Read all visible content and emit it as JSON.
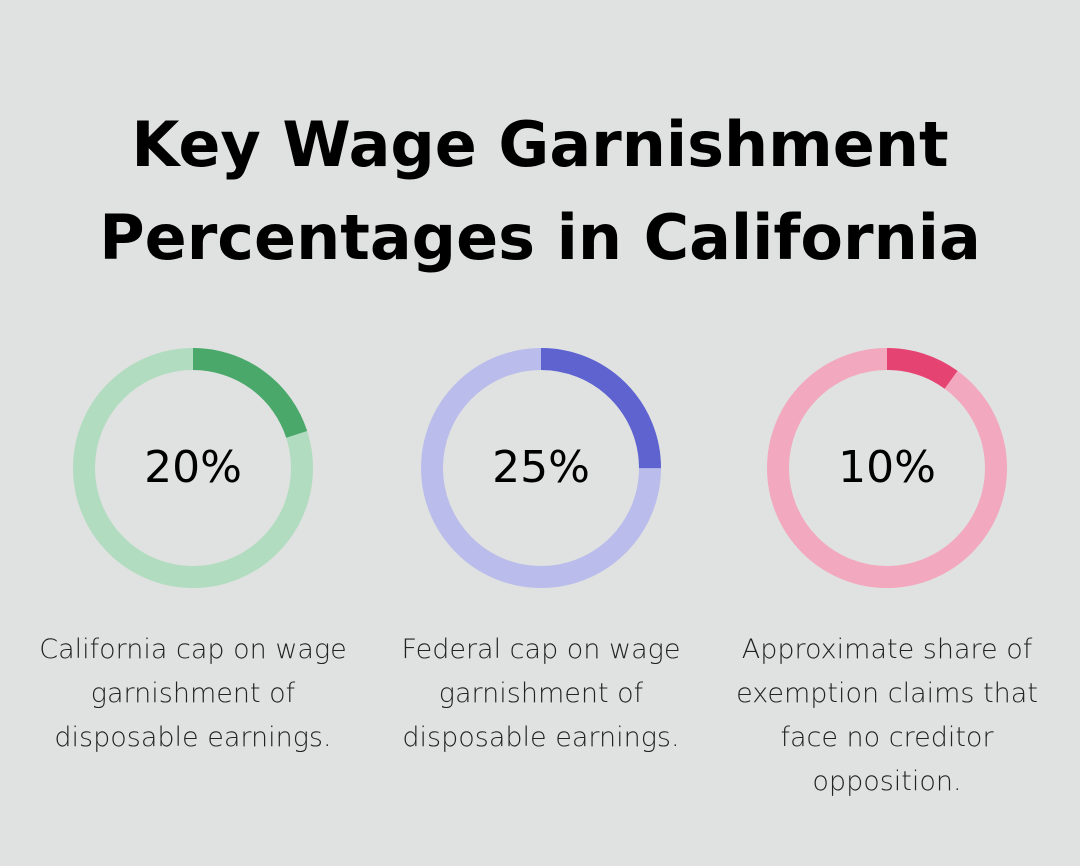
{
  "title": {
    "line1": "Key Wage Garnishment",
    "line2": "Percentages in California"
  },
  "chart_data": [
    {
      "type": "pie",
      "value": 20,
      "max": 100,
      "label": "20%",
      "caption": "California cap on wage garnishment of disposable earnings.",
      "colors": {
        "fill": "#4aa86b",
        "track": "#b2dcc0"
      }
    },
    {
      "type": "pie",
      "value": 25,
      "max": 100,
      "label": "25%",
      "caption": "Federal cap on wage garnishment of disposable earnings.",
      "colors": {
        "fill": "#5e63d0",
        "track": "#babdeb"
      }
    },
    {
      "type": "pie",
      "value": 10,
      "max": 100,
      "label": "10%",
      "caption": "Approximate share of exemption claims that face no creditor opposition.",
      "colors": {
        "fill": "#e54473",
        "track": "#f2a8bf"
      }
    }
  ]
}
